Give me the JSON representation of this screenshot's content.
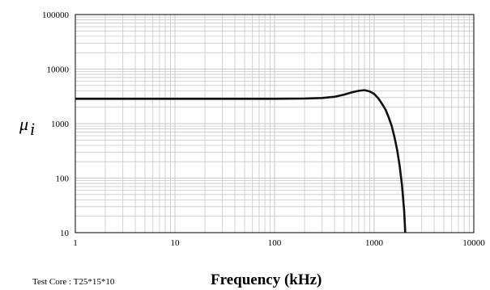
{
  "chart_data": {
    "type": "line",
    "title": "",
    "xlabel": "Frequency (kHz)",
    "ylabel": "μi",
    "x_scale": "log",
    "y_scale": "log",
    "xlim": [
      1,
      10000
    ],
    "ylim": [
      10,
      100000
    ],
    "grid": true,
    "x_ticks": [
      "1",
      "10",
      "100",
      "1000",
      "10000"
    ],
    "y_ticks": [
      "10",
      "100",
      "1000",
      "10000",
      "100000"
    ],
    "annotation": "Test Core : T25*15*10",
    "series": [
      {
        "x": [
          1,
          5,
          20,
          50,
          100,
          200,
          300,
          400,
          500,
          600,
          700,
          800,
          900,
          1000,
          1100,
          1200,
          1300,
          1400,
          1500,
          1600,
          1700,
          1800,
          1900,
          2000,
          2050
        ],
        "y": [
          2850,
          2850,
          2850,
          2850,
          2850,
          2880,
          2950,
          3100,
          3400,
          3750,
          4000,
          4100,
          3900,
          3500,
          2900,
          2300,
          1800,
          1300,
          900,
          560,
          330,
          170,
          75,
          25,
          10
        ]
      }
    ]
  }
}
